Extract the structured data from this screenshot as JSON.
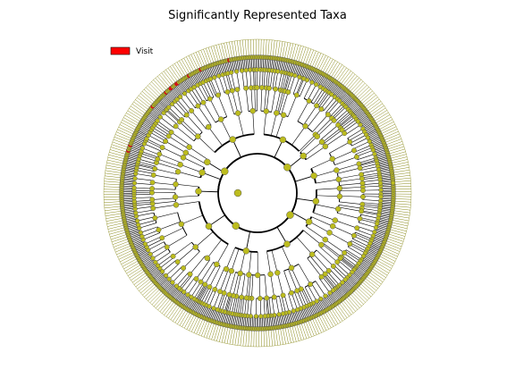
{
  "figure": {
    "title": "Significantly Represented Taxa",
    "legend": [
      {
        "label": "Visit",
        "color": "#ff0000"
      }
    ]
  },
  "tree": {
    "type": "circular-cladogram",
    "ring_levels": 6,
    "colors": {
      "node_default": "#bcbc1e",
      "node_highlight": "#ff0000",
      "branch": "#000000",
      "leaf_stroke": "#8a8a1a"
    },
    "leaf_count": 360
  }
}
